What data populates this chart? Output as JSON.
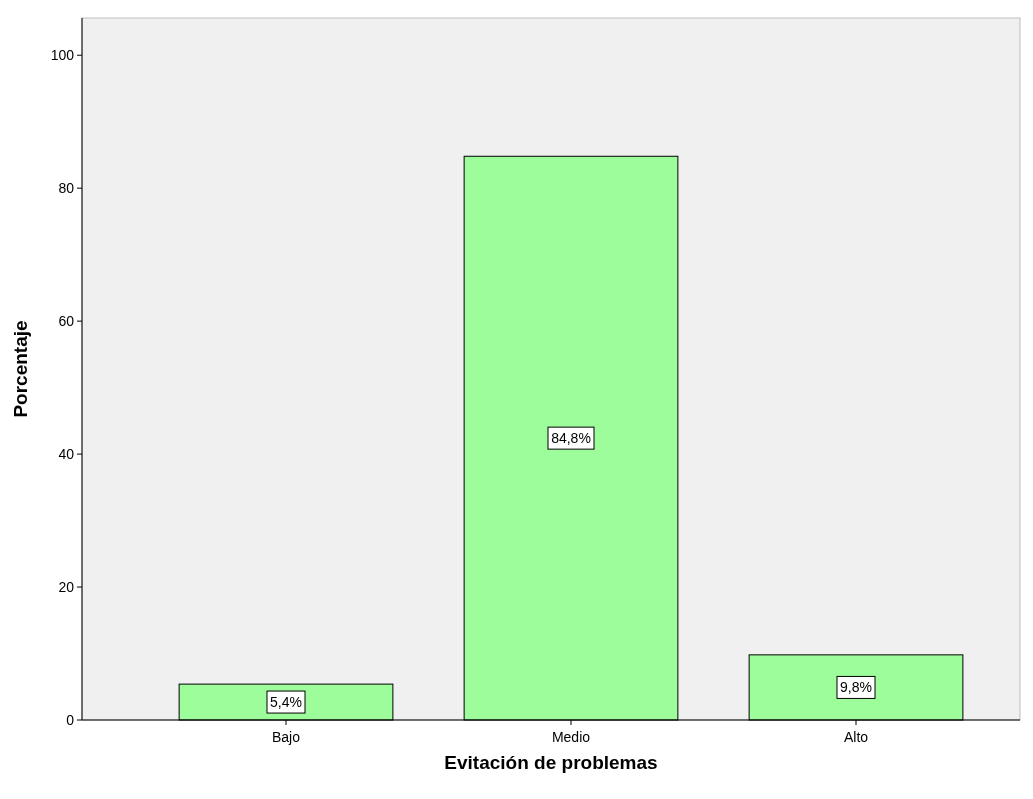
{
  "chart_data": {
    "type": "bar",
    "xlabel": "Evitación de problemas",
    "ylabel": "Porcentaje",
    "categories": [
      "Bajo",
      "Medio",
      "Alto"
    ],
    "values": [
      5.4,
      84.8,
      9.8
    ],
    "value_labels": [
      "5,4%",
      "84,8%",
      "9,8%"
    ],
    "color": "#9dfd9b",
    "ylim": [
      0,
      105.6
    ],
    "yticks": [
      0,
      20,
      40,
      60,
      80,
      100
    ],
    "grid": false
  }
}
